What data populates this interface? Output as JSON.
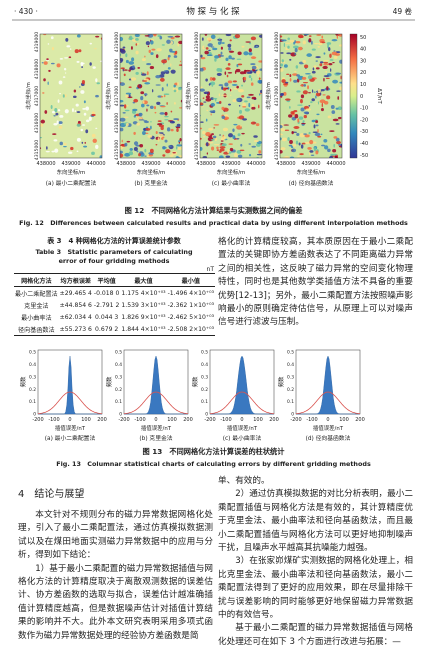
{
  "header": {
    "page": "· 430 ·",
    "journal": "物 探 与 化 探",
    "volume": "49 卷"
  },
  "figure12": {
    "panels": [
      "(a) 最小二乘配置法",
      "(b) 克里金法",
      "(c) 最小曲率法",
      "(d) 径向基函数法"
    ],
    "x_axis_label": "东向坐标/m",
    "y_axis_label": "北向坐标/m",
    "x_ticks": [
      "438000",
      "439000",
      "440000"
    ],
    "y_ticks": [
      "4315000",
      "4316000",
      "4317000",
      "4318000",
      "4319000"
    ],
    "colorbar_unit": "ΔT/nT",
    "colorbar_ticks": [
      "50",
      "40",
      "30",
      "20",
      "10",
      "0",
      "-10",
      "-20",
      "-30",
      "-40",
      "-50"
    ],
    "caption_cn": "图 12　不同网格化方法计算结果与实测数据之间的偏差",
    "caption_en": "Fig. 12　Differences between calculated results and practical data by using different interpolation methods"
  },
  "table3": {
    "title_cn": "表 3　4 种网格化方法的计算误差统计参数",
    "title_en": "Table 3　Statistic parameters of calculating error of four gridding methods",
    "unit": "nT",
    "columns": [
      "网格化方法",
      "均方根误差",
      "平均值",
      "最大值",
      "最小值"
    ],
    "rows": [
      [
        "最小二乘配置法",
        "±29.465 4",
        "-0.018 0",
        "1.175 4×10⁺⁰³",
        "-1.496 4×10⁺⁰³"
      ],
      [
        "克里金法",
        "±44.854 6",
        "-2.791 2",
        "1.539 3×10⁺⁰³",
        "-2.362 1×10⁺⁰³"
      ],
      [
        "最小曲率法",
        "±62.034 4",
        "0.044 3",
        "1.826 9×10⁺⁰³",
        "-2.462 5×10⁺⁰³"
      ],
      [
        "径向基函数法",
        "±55.273 6",
        "0.679 2",
        "1.844 4×10⁺⁰³",
        "-2.508 2×10⁺⁰³"
      ]
    ]
  },
  "paragraph_top_right": "格化的计算精度较高，其本质原因在于最小二乘配置法的关键即协方差函数表达了不同距离磁力异常之间的相关性，这反映了磁力异常的空间变化物理特性，同时也是其他数学类插值方法不具备的重要优势[12-13]；另外，最小二乘配置方法按照噪声影响最小的原则确定待估信号，从原理上可以对噪声信号进行滤波与压制。",
  "figure13": {
    "panels": [
      "(a) 最小二乘配置法",
      "(b) 克里金法",
      "(c) 最小曲率法",
      "(d) 径向基函数法"
    ],
    "y_axis_label": "频数",
    "x_axis_label": "插值误差/nT",
    "x_ticks": [
      "-200",
      "-100",
      "0",
      "100",
      "200"
    ],
    "y_ticks": [
      "0.5",
      "0.4",
      "0.3",
      "0.2",
      "0.1",
      "0"
    ],
    "caption_cn": "图 13　不同网格化方法计算误差的柱状统计",
    "caption_en": "Fig. 13　Columnar statistical charts of calculating errors by different gridding methods"
  },
  "section4": {
    "heading": "4　结论与展望",
    "left_paragraphs": [
      "本文针对不规则分布的磁力异常数据网格化处理，引入了最小二乘配置法，通过仿真模拟数据测试以及在煤田地面实测磁力异常数据中的应用与分析，得到如下结论：",
      "1）基于最小二乘配置的磁力异常数据插值与网格化方法的计算精度取决于离散观测数据的误差估计、协方差函数的选取与拟合，误差估计越准确插值计算精度越高，但是数据噪声估计对插值计算结果的影响并不大。此外本文研究表明采用多项式函数作为磁力异常数据处理的经验协方差函数是简"
    ],
    "right_paragraphs": [
      "单、有效的。",
      "2）通过仿真模拟数据的对比分析表明，最小二乘配置插值与网格化方法是有效的，其计算精度优于克里金法、最小曲率法和径向基函数法，而且最小二乘配置插值与网格化方法可以更好地抑制噪声干扰，且噪声水平越高其抗噪能力越强。",
      "3）在张家峁煤矿实测数据的网格化处理上，相比克里金法、最小曲率法和径向基函数法，最小二乘配置法得到了更好的应用效果，即在尽量排除干扰与误差影响的同时能够更好地保留磁力异常数据中的有效信号。",
      "基于最小二乘配置的磁力异常数据插值与网格化处理还可在如下 3 个方面进行改进与拓展：—"
    ]
  }
}
